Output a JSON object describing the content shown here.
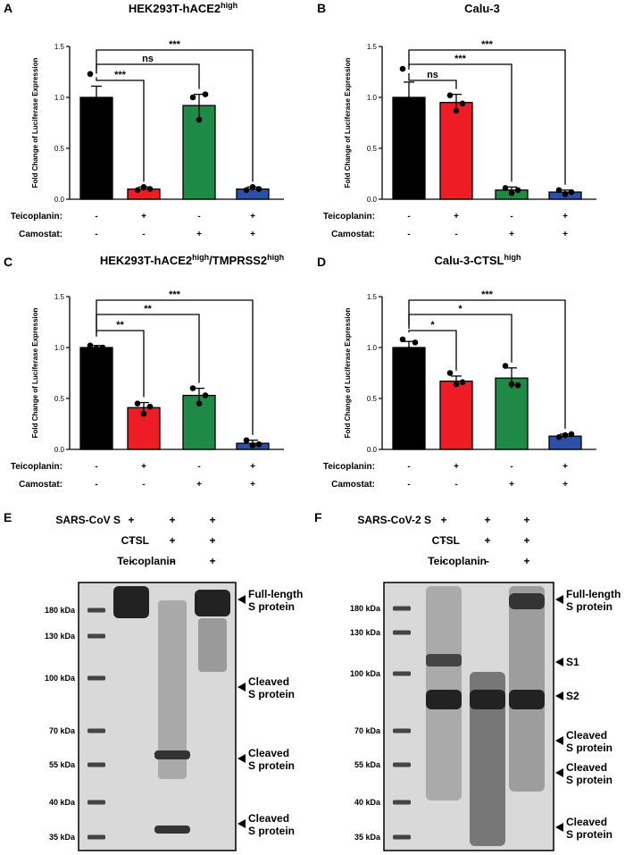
{
  "figure": {
    "bar_panels": [
      {
        "letter": "A",
        "title_main": "HEK293T-hACE2",
        "title_sup": "high",
        "title_tail": "",
        "ylabel": "Fold Change of Luciferase Expression",
        "yticks": [
          "0.0",
          "0.5",
          "1.0",
          "1.5"
        ],
        "conditions": [
          {
            "label": "Teicoplanin:",
            "signs": [
              "-",
              "+",
              "-",
              "+"
            ]
          },
          {
            "label": "Camostat:",
            "signs": [
              "-",
              "-",
              "+",
              "+"
            ]
          }
        ],
        "significance": [
          {
            "to": 1,
            "label": "***"
          },
          {
            "to": 2,
            "label": "ns"
          },
          {
            "to": 3,
            "label": "***"
          }
        ]
      },
      {
        "letter": "B",
        "title_main": "Calu-3",
        "title_sup": "",
        "title_tail": "",
        "ylabel": "Fold Change of Luciferase Expression",
        "yticks": [
          "0.0",
          "0.5",
          "1.0",
          "1.5"
        ],
        "conditions": [
          {
            "label": "Teicoplanin:",
            "signs": [
              "-",
              "+",
              "-",
              "+"
            ]
          },
          {
            "label": "Camostat:",
            "signs": [
              "-",
              "-",
              "+",
              "+"
            ]
          }
        ],
        "significance": [
          {
            "to": 1,
            "label": "ns"
          },
          {
            "to": 2,
            "label": "***"
          },
          {
            "to": 3,
            "label": "***"
          }
        ]
      },
      {
        "letter": "C",
        "title_main": "HEK293T-hACE2",
        "title_sup": "high",
        "title_tail": "/TMPRSS2",
        "title_sup2": "high",
        "ylabel": "Fold Change of Luciferase Expression",
        "yticks": [
          "0.0",
          "0.5",
          "1.0",
          "1.5"
        ],
        "conditions": [
          {
            "label": "Teicoplanin:",
            "signs": [
              "-",
              "+",
              "-",
              "+"
            ]
          },
          {
            "label": "Camostat:",
            "signs": [
              "-",
              "-",
              "+",
              "+"
            ]
          }
        ],
        "significance": [
          {
            "to": 1,
            "label": "**"
          },
          {
            "to": 2,
            "label": "**"
          },
          {
            "to": 3,
            "label": "***"
          }
        ]
      },
      {
        "letter": "D",
        "title_main": "Calu-3-CTSL",
        "title_sup": "high",
        "title_tail": "",
        "ylabel": "Fold Change of Luciferase Expression",
        "yticks": [
          "0.0",
          "0.5",
          "1.0",
          "1.5"
        ],
        "conditions": [
          {
            "label": "Teicoplanin:",
            "signs": [
              "-",
              "+",
              "-",
              "+"
            ]
          },
          {
            "label": "Camostat:",
            "signs": [
              "-",
              "-",
              "+",
              "+"
            ]
          }
        ],
        "significance": [
          {
            "to": 1,
            "label": "*"
          },
          {
            "to": 2,
            "label": "*"
          },
          {
            "to": 3,
            "label": "***"
          }
        ]
      }
    ],
    "blots": [
      {
        "letter": "E",
        "rows": [
          {
            "label": "SARS-CoV S",
            "signs": [
              "+",
              "+",
              "+"
            ]
          },
          {
            "label": "CTSL",
            "signs": [
              "-",
              "+",
              "+"
            ]
          },
          {
            "label": "Teicoplanin",
            "signs": [
              "-",
              "-",
              "+"
            ]
          }
        ],
        "ladder": [
          "180 kDa",
          "130 kDa",
          "100 kDa",
          "70 kDa",
          "55 kDa",
          "40 kDa",
          "35 kDa"
        ],
        "band_labels": [
          {
            "line1": "Full-length",
            "line2": "S protein"
          },
          {
            "line1": "Cleaved",
            "line2": "S protein"
          },
          {
            "line1": "Cleaved",
            "line2": "S protein"
          },
          {
            "line1": "Cleaved",
            "line2": "S protein"
          }
        ]
      },
      {
        "letter": "F",
        "rows": [
          {
            "label": "SARS-CoV-2 S",
            "signs": [
              "+",
              "+",
              "+"
            ]
          },
          {
            "label": "CTSL",
            "signs": [
              "-",
              "+",
              "+"
            ]
          },
          {
            "label": "Teicoplanin",
            "signs": [
              "-",
              "-",
              "+"
            ]
          }
        ],
        "ladder": [
          "180 kDa",
          "130 kDa",
          "100 kDa",
          "70 kDa",
          "55 kDa",
          "40 kDa",
          "35 kDa"
        ],
        "band_labels": [
          {
            "line1": "Full-length",
            "line2": "S protein"
          },
          {
            "line1": "S1",
            "line2": ""
          },
          {
            "line1": "S2",
            "line2": ""
          },
          {
            "line1": "Cleaved",
            "line2": "S protein"
          },
          {
            "line1": "Cleaved",
            "line2": "S protein"
          },
          {
            "line1": "Cleaved",
            "line2": "S protein"
          }
        ]
      }
    ]
  },
  "chart_data": [
    {
      "type": "bar",
      "ylim": [
        0,
        1.5
      ],
      "yticks": [
        0,
        0.5,
        1.0,
        1.5
      ],
      "bar_colors": [
        "#000000",
        "#ee1c24",
        "#1e8a46",
        "#2d4fa8"
      ],
      "values": [
        1.0,
        0.1,
        0.92,
        0.1
      ],
      "errors": [
        0.11,
        0.02,
        0.11,
        0.02
      ],
      "points": [
        [
          1.23,
          0.9,
          0.89
        ],
        [
          0.09,
          0.12,
          0.1
        ],
        [
          1.0,
          0.78,
          1.03
        ],
        [
          0.09,
          0.12,
          0.1
        ]
      ]
    },
    {
      "type": "bar",
      "ylim": [
        0,
        1.5
      ],
      "yticks": [
        0,
        0.5,
        1.0,
        1.5
      ],
      "bar_colors": [
        "#000000",
        "#ee1c24",
        "#1e8a46",
        "#2d4fa8"
      ],
      "values": [
        1.0,
        0.95,
        0.09,
        0.07
      ],
      "errors": [
        0.15,
        0.08,
        0.03,
        0.02
      ],
      "points": [
        [
          1.28,
          0.92,
          0.82
        ],
        [
          1.02,
          0.87,
          0.94
        ],
        [
          0.11,
          0.06,
          0.09
        ],
        [
          0.09,
          0.05,
          0.07
        ]
      ]
    },
    {
      "type": "bar",
      "ylim": [
        0,
        1.5
      ],
      "yticks": [
        0,
        0.5,
        1.0,
        1.5
      ],
      "bar_colors": [
        "#000000",
        "#ee1c24",
        "#1e8a46",
        "#2d4fa8"
      ],
      "values": [
        1.0,
        0.41,
        0.53,
        0.06
      ],
      "errors": [
        0.02,
        0.05,
        0.07,
        0.03
      ],
      "points": [
        [
          1.02,
          0.99,
          1.0
        ],
        [
          0.45,
          0.35,
          0.42
        ],
        [
          0.6,
          0.45,
          0.53
        ],
        [
          0.09,
          0.04,
          0.05
        ]
      ]
    },
    {
      "type": "bar",
      "ylim": [
        0,
        1.5
      ],
      "yticks": [
        0,
        0.5,
        1.0,
        1.5
      ],
      "bar_colors": [
        "#000000",
        "#ee1c24",
        "#1e8a46",
        "#2d4fa8"
      ],
      "values": [
        1.0,
        0.67,
        0.7,
        0.13
      ],
      "errors": [
        0.06,
        0.05,
        0.1,
        0.02
      ],
      "points": [
        [
          1.08,
          0.98,
          1.05
        ],
        [
          0.75,
          0.64,
          0.66
        ],
        [
          0.82,
          0.64,
          0.63
        ],
        [
          0.12,
          0.14,
          0.15
        ]
      ]
    }
  ]
}
